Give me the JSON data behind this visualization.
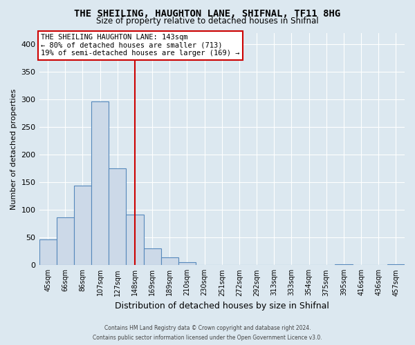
{
  "title": "THE SHEILING, HAUGHTON LANE, SHIFNAL, TF11 8HG",
  "subtitle": "Size of property relative to detached houses in Shifnal",
  "xlabel": "Distribution of detached houses by size in Shifnal",
  "ylabel": "Number of detached properties",
  "bin_labels": [
    "45sqm",
    "66sqm",
    "86sqm",
    "107sqm",
    "127sqm",
    "148sqm",
    "169sqm",
    "189sqm",
    "210sqm",
    "230sqm",
    "251sqm",
    "272sqm",
    "292sqm",
    "313sqm",
    "333sqm",
    "354sqm",
    "375sqm",
    "395sqm",
    "416sqm",
    "436sqm",
    "457sqm"
  ],
  "bar_heights": [
    47,
    86,
    144,
    296,
    175,
    91,
    30,
    14,
    5,
    0,
    0,
    0,
    0,
    0,
    0,
    0,
    0,
    2,
    0,
    0,
    2
  ],
  "bar_color": "#ccd9e8",
  "bar_edge_color": "#5588bb",
  "vline_x_index": 5,
  "vline_color": "#cc0000",
  "ylim": [
    0,
    420
  ],
  "yticks": [
    0,
    50,
    100,
    150,
    200,
    250,
    300,
    350,
    400
  ],
  "annotation_title": "THE SHEILING HAUGHTON LANE: 143sqm",
  "annotation_line1": "← 80% of detached houses are smaller (713)",
  "annotation_line2": "19% of semi-detached houses are larger (169) →",
  "footer_line1": "Contains HM Land Registry data © Crown copyright and database right 2024.",
  "footer_line2": "Contains public sector information licensed under the Open Government Licence v3.0.",
  "background_color": "#dce8f0",
  "plot_bg_color": "#dce8f0"
}
